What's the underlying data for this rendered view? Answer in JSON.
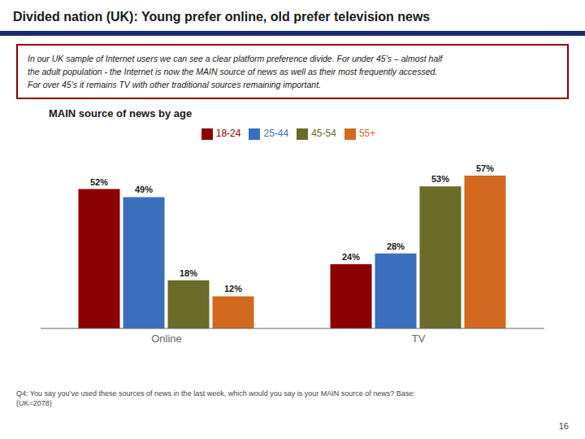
{
  "chart_data": {
    "type": "bar",
    "title": "Divided nation (UK): Young prefer online, old prefer television news",
    "subtitle": "In our UK sample of Internet users we can see a clear platform preference divide. For under 45’s – almost half\nthe adult population - the Internet is now the MAIN source of news as well as their most frequently accessed.\nFor over 45’s it remains TV with other traditional sources remaining important.",
    "chart_title": "MAIN source of news by age",
    "categories": [
      "Online",
      "TV"
    ],
    "series": [
      {
        "name": "18-24",
        "color": "#8B0000",
        "values": [
          52,
          24
        ],
        "value_labels": [
          "52%",
          "24%"
        ]
      },
      {
        "name": "25-44",
        "color": "#3B6FBE",
        "values": [
          49,
          28
        ],
        "value_labels": [
          "49%",
          "28%"
        ]
      },
      {
        "name": "45-54",
        "color": "#6B6B2A",
        "values": [
          18,
          53
        ],
        "value_labels": [
          "18%",
          "53%"
        ]
      },
      {
        "name": "55+",
        "color": "#D2691E",
        "values": [
          12,
          57
        ],
        "value_labels": [
          "12%",
          "57%"
        ]
      }
    ],
    "ylim": [
      0,
      68
    ],
    "grid": false,
    "legend": "top",
    "data_labels": true,
    "tick_labels": "x",
    "footnote": "Q4: You say you’ve used these sources of news in the last week, which would you say is your MAIN source of news?  Base:\n(UK=2078)",
    "page_number": "16"
  }
}
